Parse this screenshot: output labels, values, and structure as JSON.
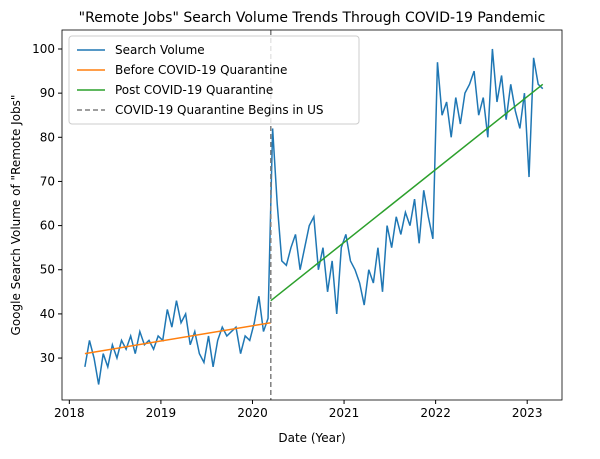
{
  "chart_data": {
    "type": "line",
    "title": "\"Remote Jobs\" Search Volume Trends Through COVID-19 Pandemic",
    "xlabel": "Date (Year)",
    "ylabel": "Google Search Volume of \"Remote Jobs\"",
    "xlim": [
      2017.92,
      2023.38
    ],
    "ylim": [
      20.5,
      104.3
    ],
    "xticks": [
      2018,
      2019,
      2020,
      2021,
      2022,
      2023
    ],
    "yticks": [
      30,
      40,
      50,
      60,
      70,
      80,
      90,
      100
    ],
    "legend": "upper left",
    "series": [
      {
        "name": "Search Volume",
        "color": "#1f77b4",
        "x": [
          2018.17,
          2018.22,
          2018.27,
          2018.32,
          2018.37,
          2018.42,
          2018.47,
          2018.52,
          2018.57,
          2018.62,
          2018.67,
          2018.72,
          2018.77,
          2018.82,
          2018.87,
          2018.92,
          2018.97,
          2019.02,
          2019.07,
          2019.12,
          2019.17,
          2019.22,
          2019.27,
          2019.32,
          2019.37,
          2019.42,
          2019.47,
          2019.52,
          2019.57,
          2019.62,
          2019.67,
          2019.72,
          2019.77,
          2019.82,
          2019.87,
          2019.92,
          2019.97,
          2020.02,
          2020.07,
          2020.12,
          2020.17,
          2020.22,
          2020.27,
          2020.32,
          2020.37,
          2020.42,
          2020.47,
          2020.52,
          2020.57,
          2020.62,
          2020.67,
          2020.72,
          2020.77,
          2020.82,
          2020.87,
          2020.92,
          2020.97,
          2021.02,
          2021.07,
          2021.12,
          2021.17,
          2021.22,
          2021.27,
          2021.32,
          2021.37,
          2021.42,
          2021.47,
          2021.52,
          2021.57,
          2021.62,
          2021.67,
          2021.72,
          2021.77,
          2021.82,
          2021.87,
          2021.92,
          2021.97,
          2022.02,
          2022.07,
          2022.12,
          2022.17,
          2022.22,
          2022.27,
          2022.32,
          2022.37,
          2022.42,
          2022.47,
          2022.52,
          2022.57,
          2022.62,
          2022.67,
          2022.72,
          2022.77,
          2022.82,
          2022.87,
          2022.92,
          2022.97,
          2023.02,
          2023.07,
          2023.12,
          2023.17
        ],
        "values": [
          28,
          34,
          30,
          24,
          31,
          28,
          33,
          30,
          34,
          32,
          35,
          31,
          36,
          33,
          34,
          32,
          35,
          34,
          41,
          37,
          43,
          38,
          40,
          33,
          36,
          31,
          29,
          35,
          28,
          34,
          37,
          35,
          36,
          37,
          31,
          35,
          34,
          38,
          44,
          36,
          39,
          82,
          65,
          52,
          51,
          55,
          58,
          50,
          55,
          60,
          62,
          50,
          55,
          45,
          52,
          40,
          55,
          58,
          52,
          50,
          47,
          42,
          50,
          47,
          55,
          45,
          60,
          55,
          62,
          58,
          63,
          60,
          66,
          56,
          68,
          62,
          57,
          97,
          85,
          88,
          80,
          89,
          83,
          90,
          92,
          95,
          85,
          89,
          80,
          100,
          88,
          94,
          84,
          92,
          86,
          82,
          90,
          71,
          98,
          92,
          91
        ]
      },
      {
        "name": "Before COVID-19 Quarantine",
        "color": "#ff7f0e",
        "x": [
          2018.17,
          2020.2
        ],
        "values": [
          31,
          38
        ]
      },
      {
        "name": "Post COVID-19 Quarantine",
        "color": "#2ca02c",
        "x": [
          2020.2,
          2023.17
        ],
        "values": [
          43,
          92
        ]
      }
    ],
    "vlines": [
      {
        "name": "COVID-19 Quarantine Begins in US",
        "color": "#7f7f7f",
        "x": 2020.2,
        "style": "dashed"
      }
    ]
  }
}
